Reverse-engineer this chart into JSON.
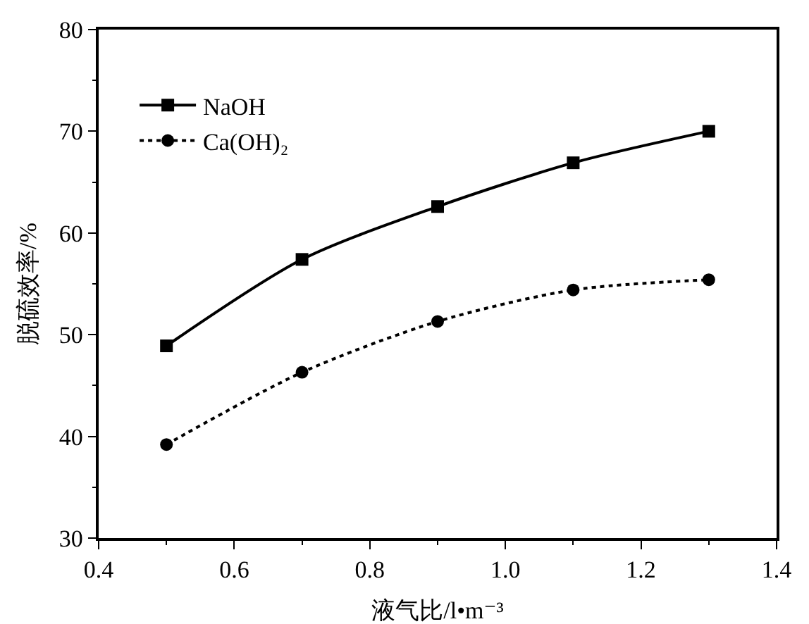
{
  "chart_data": {
    "type": "line",
    "xlabel": "液气比/l•m⁻³",
    "ylabel": "脱硫效率/%",
    "x": [
      0.5,
      0.7,
      0.9,
      1.1,
      1.3
    ],
    "series": [
      {
        "name": "NaOH",
        "color": "#000000",
        "values": [
          48.9,
          57.4,
          62.6,
          66.9,
          70.0
        ],
        "marker": "square",
        "line_style": "solid"
      },
      {
        "name": "Ca(OH)₂",
        "color": "#000000",
        "values": [
          39.2,
          46.3,
          51.3,
          54.4,
          55.4
        ],
        "marker": "circle",
        "line_style": "dotted"
      }
    ],
    "xlim": [
      0.4,
      1.4
    ],
    "xticks": [
      0.4,
      0.6,
      0.8,
      {
        "value": 1,
        "label": "1.0"
      },
      1.2,
      1.4
    ],
    "ylim": [
      30,
      80
    ],
    "yticks": [
      30,
      40,
      50,
      60,
      70,
      80
    ],
    "grid": false,
    "legend": "top left"
  }
}
